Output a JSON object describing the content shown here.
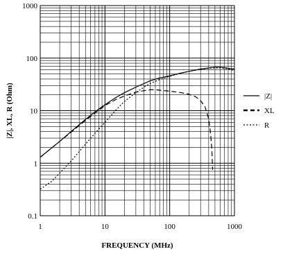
{
  "chart_data": {
    "type": "line",
    "title": "",
    "xlabel": "FREQUENCY (MHz)",
    "ylabel": "|Z|, XL, R (Ohm)",
    "xscale": "log",
    "yscale": "log",
    "xlim": [
      1,
      1000
    ],
    "ylim": [
      0.1,
      1000
    ],
    "x_ticks": [
      "1",
      "10",
      "100",
      "1000"
    ],
    "y_ticks": [
      "0.1",
      "1",
      "10",
      "100",
      "1000"
    ],
    "grid": true,
    "legend_position": "right",
    "series": [
      {
        "name": "|Z|",
        "line_style": "solid",
        "color": "#000000",
        "points": [
          [
            1,
            1.3
          ],
          [
            2,
            2.6
          ],
          [
            3,
            4.0
          ],
          [
            5,
            6.8
          ],
          [
            7,
            9.5
          ],
          [
            10,
            13
          ],
          [
            15,
            18
          ],
          [
            20,
            22
          ],
          [
            30,
            28
          ],
          [
            50,
            37
          ],
          [
            70,
            42
          ],
          [
            100,
            46
          ],
          [
            150,
            52
          ],
          [
            200,
            56
          ],
          [
            300,
            62
          ],
          [
            400,
            65
          ],
          [
            500,
            67
          ],
          [
            600,
            67
          ],
          [
            700,
            66
          ],
          [
            800,
            64
          ],
          [
            1000,
            62
          ]
        ]
      },
      {
        "name": "XL",
        "line_style": "dashed",
        "color": "#000000",
        "points": [
          [
            1,
            1.3
          ],
          [
            2,
            2.6
          ],
          [
            3,
            3.9
          ],
          [
            5,
            6.5
          ],
          [
            7,
            9.0
          ],
          [
            10,
            12.5
          ],
          [
            15,
            16.5
          ],
          [
            20,
            19
          ],
          [
            30,
            22.5
          ],
          [
            40,
            24
          ],
          [
            50,
            25
          ],
          [
            60,
            25
          ],
          [
            70,
            24.5
          ],
          [
            100,
            23.5
          ],
          [
            150,
            22
          ],
          [
            200,
            20.5
          ],
          [
            250,
            18.5
          ],
          [
            300,
            15.5
          ],
          [
            350,
            12
          ],
          [
            400,
            7
          ],
          [
            430,
            3.5
          ],
          [
            450,
            1.6
          ],
          [
            460,
            0.75
          ]
        ]
      },
      {
        "name": "R",
        "line_style": "dotted",
        "color": "#000000",
        "points": [
          [
            1,
            0.32
          ],
          [
            1.5,
            0.45
          ],
          [
            2,
            0.65
          ],
          [
            3,
            1.1
          ],
          [
            5,
            2.3
          ],
          [
            7,
            3.7
          ],
          [
            10,
            6.0
          ],
          [
            15,
            10.5
          ],
          [
            20,
            15
          ],
          [
            30,
            22
          ],
          [
            40,
            28
          ],
          [
            50,
            33
          ],
          [
            70,
            39
          ],
          [
            100,
            45
          ],
          [
            150,
            52
          ],
          [
            200,
            56
          ],
          [
            300,
            61
          ],
          [
            400,
            64
          ],
          [
            500,
            65
          ],
          [
            600,
            65
          ],
          [
            700,
            64
          ],
          [
            800,
            62
          ],
          [
            1000,
            58
          ]
        ]
      }
    ]
  }
}
